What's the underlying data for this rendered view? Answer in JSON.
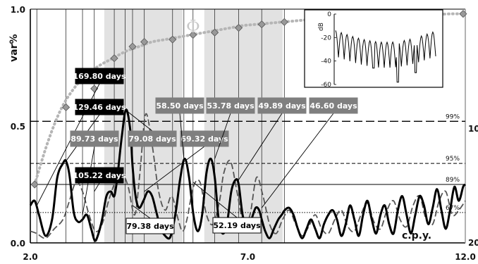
{
  "chart_data": {
    "type": "line",
    "ylabel": "var%",
    "xlabel": "c.p.y.",
    "xlim": [
      2.0,
      12.0
    ],
    "ylim": [
      0.0,
      1.0
    ],
    "x_ticks": [
      "2.0",
      "7.0",
      "12.0"
    ],
    "y_ticks": [
      "0.0",
      "0.5",
      "1.0"
    ],
    "right_ticks": [
      "10",
      "20"
    ],
    "shaded_bands": [
      [
        3.7,
        5.5
      ],
      [
        6.0,
        7.8
      ]
    ],
    "vertical_lines": [
      2.15,
      2.82,
      3.2,
      3.47,
      3.93,
      4.18,
      4.35,
      4.62,
      5.27,
      5.53,
      5.74,
      6.24,
      6.79,
      7.32,
      7.84
    ],
    "significance_levels": [
      {
        "label": "99%",
        "value": 0.52,
        "style": "dashed-long"
      },
      {
        "label": "95%",
        "value": 0.34,
        "style": "dashed"
      },
      {
        "label": "89%",
        "value": 0.25,
        "style": "solid"
      },
      {
        "label": "67%",
        "value": 0.13,
        "style": "dotted"
      }
    ],
    "series": [
      {
        "name": "",
        "style": "solid-black",
        "x": [
          2.0,
          2.1,
          2.2,
          2.35,
          2.5,
          2.62,
          2.75,
          2.82,
          2.9,
          3.0,
          3.1,
          3.2,
          3.3,
          3.4,
          3.48,
          3.55,
          3.65,
          3.75,
          3.85,
          3.93,
          4.0,
          4.1,
          4.2,
          4.3,
          4.35,
          4.42,
          4.5,
          4.6,
          4.7,
          4.8,
          4.9,
          5.0,
          5.1,
          5.2,
          5.27,
          5.35,
          5.45,
          5.55,
          5.65,
          5.75,
          5.85,
          5.95,
          6.05,
          6.15,
          6.24,
          6.33,
          6.42,
          6.52,
          6.62,
          6.72,
          6.79,
          6.88,
          6.98,
          7.08,
          7.18,
          7.26,
          7.32,
          7.4,
          7.5,
          7.6,
          7.7,
          7.78,
          7.85,
          7.95,
          8.05,
          8.15,
          8.25,
          8.35,
          8.45,
          8.55,
          8.65,
          8.75,
          8.85,
          8.95,
          9.05,
          9.15,
          9.25,
          9.35,
          9.45,
          9.55,
          9.65,
          9.75,
          9.85,
          9.95,
          10.05,
          10.15,
          10.25,
          10.35,
          10.45,
          10.55,
          10.65,
          10.75,
          10.85,
          10.95,
          11.05,
          11.15,
          11.25,
          11.35,
          11.45,
          11.55,
          11.65,
          11.75,
          11.85,
          11.95,
          12.0
        ],
        "y": [
          0.16,
          0.18,
          0.12,
          0.03,
          0.1,
          0.28,
          0.34,
          0.35,
          0.29,
          0.13,
          0.09,
          0.1,
          0.12,
          0.06,
          0.01,
          0.03,
          0.1,
          0.2,
          0.22,
          0.2,
          0.28,
          0.45,
          0.57,
          0.48,
          0.33,
          0.2,
          0.15,
          0.18,
          0.22,
          0.2,
          0.13,
          0.06,
          0.03,
          0.02,
          0.06,
          0.14,
          0.28,
          0.36,
          0.28,
          0.12,
          0.05,
          0.12,
          0.3,
          0.36,
          0.28,
          0.1,
          0.04,
          0.08,
          0.22,
          0.27,
          0.25,
          0.12,
          0.07,
          0.1,
          0.15,
          0.14,
          0.1,
          0.05,
          0.02,
          0.06,
          0.1,
          0.12,
          0.14,
          0.15,
          0.12,
          0.06,
          0.02,
          0.06,
          0.1,
          0.06,
          0.02,
          0.08,
          0.12,
          0.14,
          0.1,
          0.03,
          0.08,
          0.16,
          0.1,
          0.03,
          0.12,
          0.18,
          0.1,
          0.04,
          0.12,
          0.16,
          0.08,
          0.04,
          0.14,
          0.2,
          0.12,
          0.04,
          0.12,
          0.2,
          0.16,
          0.08,
          0.15,
          0.23,
          0.14,
          0.06,
          0.14,
          0.24,
          0.18,
          0.24,
          0.25
        ]
      },
      {
        "name": "",
        "style": "dashed-gray",
        "x": [
          2.0,
          2.15,
          2.35,
          2.55,
          2.75,
          2.9,
          3.05,
          3.2,
          3.35,
          3.5,
          3.65,
          3.8,
          3.95,
          4.1,
          4.25,
          4.4,
          4.52,
          4.65,
          4.8,
          4.95,
          5.1,
          5.25,
          5.4,
          5.5,
          5.6,
          5.75,
          5.9,
          6.05,
          6.2,
          6.35,
          6.45,
          6.6,
          6.75,
          6.9,
          7.05,
          7.2,
          7.35,
          7.5,
          7.65,
          7.8,
          7.95,
          8.1,
          8.25,
          8.4,
          8.55,
          8.7,
          8.85,
          9.0,
          9.15,
          9.3,
          9.45,
          9.6,
          9.75,
          9.9,
          10.05,
          10.2,
          10.35,
          10.5,
          10.65,
          10.8,
          10.95,
          11.1,
          11.25,
          11.4,
          11.55,
          11.7,
          11.85,
          12.0
        ],
        "y": [
          0.05,
          0.04,
          0.02,
          0.06,
          0.1,
          0.18,
          0.26,
          0.22,
          0.12,
          0.05,
          0.08,
          0.18,
          0.26,
          0.3,
          0.24,
          0.12,
          0.3,
          0.55,
          0.42,
          0.22,
          0.14,
          0.2,
          0.1,
          0.05,
          0.1,
          0.24,
          0.26,
          0.12,
          0.08,
          0.18,
          0.3,
          0.35,
          0.22,
          0.08,
          0.12,
          0.28,
          0.2,
          0.08,
          0.04,
          0.1,
          0.14,
          0.08,
          0.03,
          0.07,
          0.12,
          0.06,
          0.04,
          0.1,
          0.14,
          0.07,
          0.05,
          0.12,
          0.17,
          0.09,
          0.06,
          0.14,
          0.18,
          0.1,
          0.07,
          0.16,
          0.2,
          0.1,
          0.08,
          0.18,
          0.22,
          0.12,
          0.14,
          0.18
        ]
      },
      {
        "name": "Φ",
        "style": "dotted-gray",
        "x": [
          2.1,
          2.4,
          2.7,
          3.0,
          3.3,
          3.6,
          3.9,
          4.2,
          4.5,
          4.8,
          5.1,
          5.4,
          5.7,
          6.0,
          6.3,
          6.6,
          6.9,
          7.2,
          7.5,
          7.8,
          8.1,
          8.4,
          8.7,
          9.0,
          9.3,
          9.6,
          9.9,
          10.2,
          10.5,
          10.8,
          11.1,
          11.4,
          11.7,
          11.95
        ],
        "y": [
          0.25,
          0.43,
          0.57,
          0.66,
          0.72,
          0.76,
          0.79,
          0.82,
          0.84,
          0.86,
          0.87,
          0.88,
          0.89,
          0.9,
          0.91,
          0.92,
          0.93,
          0.935,
          0.94,
          0.945,
          0.95,
          0.955,
          0.96,
          0.962,
          0.964,
          0.966,
          0.968,
          0.97,
          0.972,
          0.974,
          0.976,
          0.978,
          0.98,
          0.98
        ]
      }
    ],
    "phi_markers": [
      {
        "x": 2.1,
        "y": 0.25
      },
      {
        "x": 2.82,
        "y": 0.58
      },
      {
        "x": 3.47,
        "y": 0.66
      },
      {
        "x": 3.93,
        "y": 0.79
      },
      {
        "x": 4.35,
        "y": 0.84
      },
      {
        "x": 4.62,
        "y": 0.86
      },
      {
        "x": 5.27,
        "y": 0.87
      },
      {
        "x": 5.74,
        "y": 0.89
      },
      {
        "x": 6.24,
        "y": 0.9
      },
      {
        "x": 6.79,
        "y": 0.92
      },
      {
        "x": 7.32,
        "y": 0.935
      },
      {
        "x": 7.84,
        "y": 0.945
      },
      {
        "x": 11.95,
        "y": 0.98
      }
    ],
    "phi_label": "Φ",
    "period_labels": [
      {
        "text": "169.80 days",
        "style": "black",
        "x": 2.15,
        "y": 0.16
      },
      {
        "text": "129.46 days",
        "style": "black",
        "x": 2.82,
        "y": 0.35
      },
      {
        "text": "105.22 days",
        "style": "black",
        "x": 3.47,
        "y": 0.22
      },
      {
        "text": "89.73 days",
        "style": "gray",
        "x": 3.2,
        "y": 0.12
      },
      {
        "text": "79.08 days",
        "style": "gray",
        "x": 4.18,
        "y": 0.57
      },
      {
        "text": "69.32 days",
        "style": "gray",
        "x": 4.62,
        "y": 0.22
      },
      {
        "text": "58.50 days",
        "style": "gray",
        "x": 5.53,
        "y": 0.36
      },
      {
        "text": "53.78 days",
        "style": "gray",
        "x": 6.24,
        "y": 0.36
      },
      {
        "text": "49.89 days",
        "style": "gray",
        "x": 6.79,
        "y": 0.27
      },
      {
        "text": "46.60 days",
        "style": "gray",
        "x": 7.32,
        "y": 0.15
      },
      {
        "text": "79.38 days",
        "style": "white",
        "x": 4.35,
        "y": 0.16
      },
      {
        "text": "52.19 days",
        "style": "white",
        "x": 5.74,
        "y": 0.26
      }
    ],
    "inset": {
      "ylabel": "dB",
      "yticks": [
        "0",
        "-20",
        "-40",
        "-60"
      ],
      "ylim": [
        -60,
        0
      ]
    }
  }
}
